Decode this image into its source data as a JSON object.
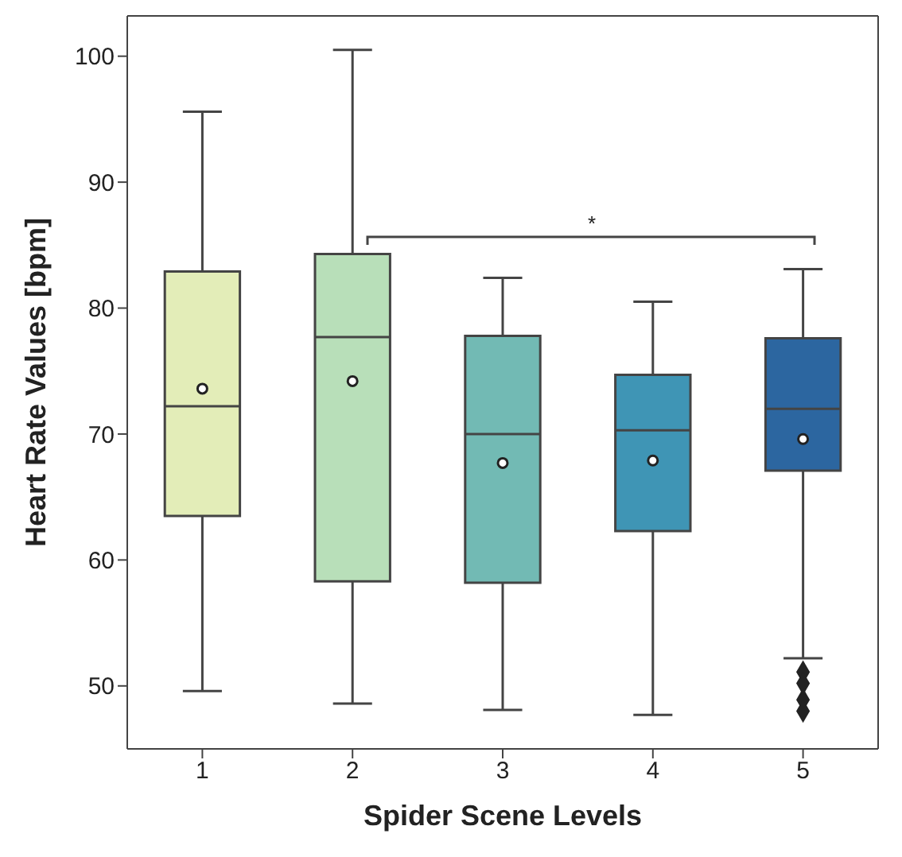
{
  "chart_data": {
    "type": "box",
    "xlabel": "Spider Scene Levels",
    "ylabel": "Heart Rate Values  [bpm]",
    "categories": [
      "1",
      "2",
      "3",
      "4",
      "5"
    ],
    "colors": [
      "#e3edb8",
      "#b8dfb9",
      "#72bab4",
      "#3f95b5",
      "#2c66a0"
    ],
    "boxes": [
      {
        "low": 49.6,
        "q1": 63.5,
        "median": 72.2,
        "q3": 82.9,
        "high": 95.6,
        "mean": 73.6
      },
      {
        "low": 48.6,
        "q1": 58.3,
        "median": 77.7,
        "q3": 84.3,
        "high": 100.5,
        "mean": 74.2
      },
      {
        "low": 48.1,
        "q1": 58.2,
        "median": 70.0,
        "q3": 77.8,
        "high": 82.4,
        "mean": 67.7
      },
      {
        "low": 47.7,
        "q1": 62.3,
        "median": 70.3,
        "q3": 74.7,
        "high": 80.5,
        "mean": 67.9
      },
      {
        "low": 52.2,
        "q1": 67.1,
        "median": 72.0,
        "q3": 77.6,
        "high": 83.1,
        "mean": 69.6,
        "outliers": [
          51.1,
          50.2,
          48.9,
          48.0
        ]
      }
    ],
    "ylim": [
      45,
      103.2
    ],
    "yticks": [
      50,
      60,
      70,
      80,
      90,
      100
    ],
    "annotations": [
      "*"
    ]
  }
}
